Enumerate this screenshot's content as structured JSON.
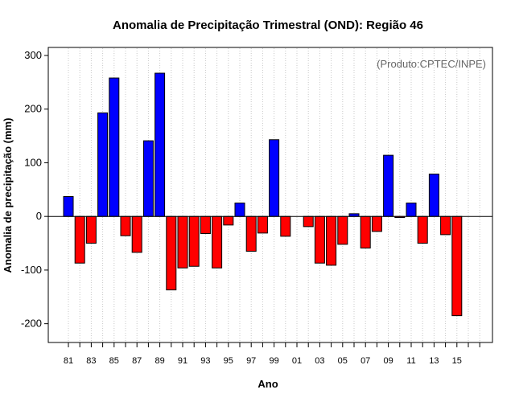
{
  "chart_data": {
    "type": "bar",
    "title": "Anomalia de Precipitação Trimestral (OND): Região 46",
    "xlabel": "Ano",
    "ylabel": "Anomalia de precipitação (mm)",
    "credit": "(Produto:CPTEC/INPE)",
    "ylim": [
      -235,
      315
    ],
    "yticks": [
      300,
      200,
      100,
      0,
      -100,
      -200
    ],
    "ytick_labels": [
      "300",
      "200",
      "100",
      "0",
      "-100",
      "-200"
    ],
    "xtick_labels": [
      "81",
      "83",
      "85",
      "87",
      "89",
      "91",
      "93",
      "95",
      "97",
      "99",
      "01",
      "03",
      "05",
      "07",
      "09",
      "11",
      "13",
      "15"
    ],
    "categories": [
      "81",
      "82",
      "83",
      "84",
      "85",
      "86",
      "87",
      "88",
      "89",
      "90",
      "91",
      "92",
      "93",
      "94",
      "95",
      "96",
      "97",
      "98",
      "99",
      "00",
      "01",
      "02",
      "03",
      "04",
      "05",
      "06",
      "07",
      "08",
      "09",
      "10",
      "11",
      "12",
      "13",
      "14",
      "15",
      "16",
      "17"
    ],
    "values": [
      37,
      -87,
      -50,
      193,
      258,
      -36,
      -67,
      141,
      267,
      -137,
      -96,
      -93,
      -32,
      -96,
      -16,
      25,
      -65,
      -31,
      143,
      -37,
      0,
      -19,
      -87,
      -91,
      -52,
      5,
      -59,
      -28,
      114,
      -2,
      25,
      -50,
      79,
      -34,
      -185,
      0,
      0
    ],
    "colors": {
      "positive": "#0000ff",
      "negative": "#ff0000",
      "grid": "#c8c8c8"
    }
  }
}
